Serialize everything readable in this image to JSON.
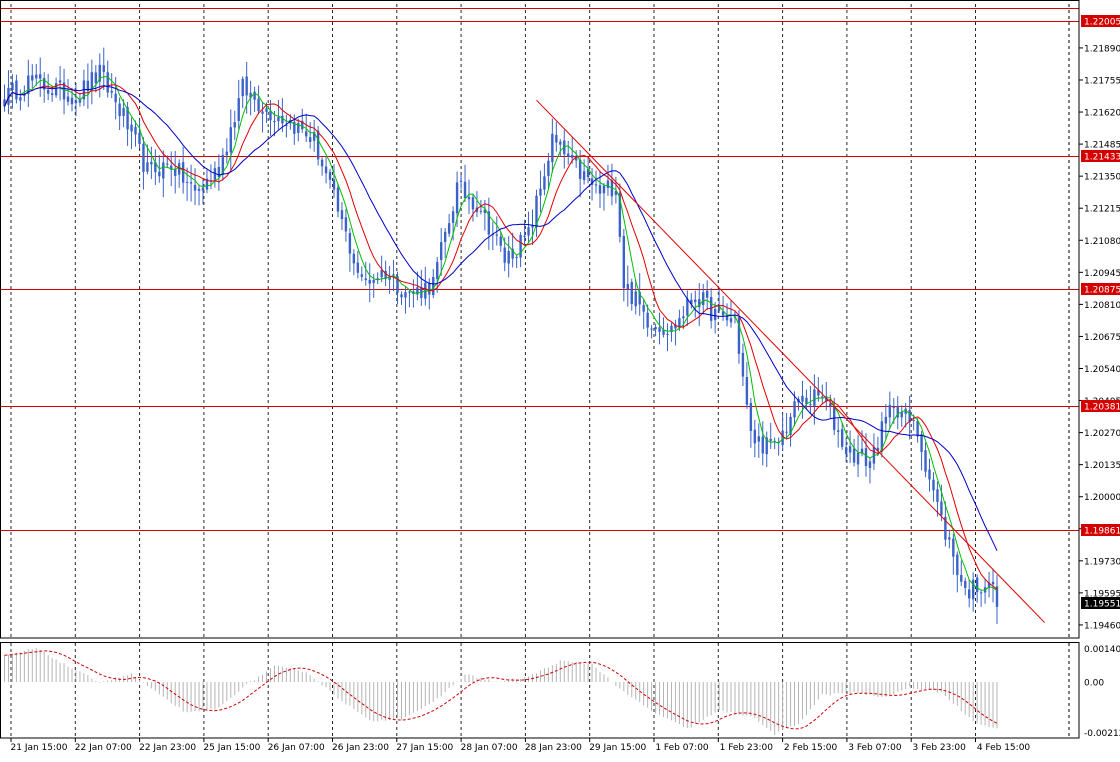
{
  "chart_data": [
    {
      "type": "candlestick",
      "panel": "main",
      "ylim": [
        1.19405,
        1.22075
      ],
      "y_ticks": [
        "1.21890",
        "1.21755",
        "1.21620",
        "1.21485",
        "1.21350",
        "1.21215",
        "1.21080",
        "1.20945",
        "1.20810",
        "1.20675",
        "1.20540",
        "1.20405",
        "1.20270",
        "1.20135",
        "1.20000",
        "1.19865",
        "1.19730",
        "1.19595",
        "1.19460"
      ],
      "x_ticks": [
        "21 Jan 15:00",
        "22 Jan 07:00",
        "22 Jan 23:00",
        "25 Jan 15:00",
        "26 Jan 07:00",
        "26 Jan 23:00",
        "27 Jan 15:00",
        "28 Jan 07:00",
        "28 Jan 23:00",
        "29 Jan 15:00",
        "1 Feb 07:00",
        "1 Feb 23:00",
        "2 Feb 15:00",
        "3 Feb 07:00",
        "3 Feb 23:00",
        "4 Feb 15:00"
      ],
      "horizontal_levels": [
        {
          "label": "1.22005",
          "value": 1.22005
        },
        {
          "label": "1.21433",
          "value": 1.21433
        },
        {
          "label": "1.20875",
          "value": 1.20875
        },
        {
          "label": "1.20381",
          "value": 1.20381
        },
        {
          "label": "1.19861",
          "value": 1.19861
        }
      ],
      "current_price": {
        "label": "1.19551",
        "value": 1.19551
      },
      "close_anchors": [
        [
          0,
          1.2168
        ],
        [
          6,
          1.2175
        ],
        [
          12,
          1.2172
        ],
        [
          18,
          1.2169
        ],
        [
          24,
          1.2178
        ],
        [
          30,
          1.216
        ],
        [
          36,
          1.2137
        ],
        [
          42,
          1.214
        ],
        [
          48,
          1.2128
        ],
        [
          54,
          1.2138
        ],
        [
          60,
          1.2172
        ],
        [
          66,
          1.2163
        ],
        [
          72,
          1.2158
        ],
        [
          78,
          1.215
        ],
        [
          84,
          1.212
        ],
        [
          90,
          1.209
        ],
        [
          96,
          1.2095
        ],
        [
          102,
          1.2085
        ],
        [
          108,
          1.209
        ],
        [
          114,
          1.213
        ],
        [
          120,
          1.2122
        ],
        [
          126,
          1.21
        ],
        [
          132,
          1.211
        ],
        [
          138,
          1.215
        ],
        [
          144,
          1.2138
        ],
        [
          150,
          1.2128
        ],
        [
          154,
          1.2132
        ],
        [
          156,
          1.209
        ],
        [
          162,
          1.2075
        ],
        [
          168,
          1.207
        ],
        [
          174,
          1.2085
        ],
        [
          180,
          1.2075
        ],
        [
          184,
          1.2075
        ],
        [
          188,
          1.2025
        ],
        [
          194,
          1.202
        ],
        [
          200,
          1.204
        ],
        [
          206,
          1.2042
        ],
        [
          212,
          1.202
        ],
        [
          218,
          1.2015
        ],
        [
          224,
          1.204
        ],
        [
          230,
          1.2027
        ],
        [
          236,
          1.199
        ],
        [
          242,
          1.196
        ],
        [
          248,
          1.1965
        ],
        [
          250,
          1.1955
        ]
      ],
      "moving_averages": [
        {
          "color": "#00c000",
          "period": 5
        },
        {
          "color": "#e00000",
          "period": 10
        },
        {
          "color": "#0000c8",
          "period": 20
        }
      ],
      "trendline": {
        "color": "#e00000",
        "from": [
          134,
          1.2167
        ],
        "to": [
          262,
          1.1947
        ]
      }
    },
    {
      "type": "histogram",
      "panel": "indicator",
      "ylim": [
        -0.00215,
        0.0015
      ],
      "y_ticks": [
        "0.001408",
        "0.00",
        "-0.002124"
      ],
      "series": [
        {
          "type": "bar",
          "color": "#b4b4b4",
          "signal_color": "#d00000"
        }
      ],
      "value_anchors": [
        [
          0,
          0.001
        ],
        [
          8,
          0.0013
        ],
        [
          16,
          0.0006
        ],
        [
          24,
          0.0
        ],
        [
          32,
          0.0003
        ],
        [
          40,
          -0.0006
        ],
        [
          46,
          -0.0012
        ],
        [
          54,
          -0.001
        ],
        [
          60,
          -0.0002
        ],
        [
          68,
          0.0006
        ],
        [
          76,
          0.0004
        ],
        [
          84,
          -0.0006
        ],
        [
          92,
          -0.0015
        ],
        [
          100,
          -0.0014
        ],
        [
          108,
          -0.0008
        ],
        [
          116,
          0.0003
        ],
        [
          124,
          0.0
        ],
        [
          132,
          0.0002
        ],
        [
          140,
          0.0008
        ],
        [
          148,
          0.0007
        ],
        [
          156,
          -0.0004
        ],
        [
          164,
          -0.0012
        ],
        [
          172,
          -0.0018
        ],
        [
          180,
          -0.0011
        ],
        [
          188,
          -0.0013
        ],
        [
          194,
          -0.002
        ],
        [
          200,
          -0.0016
        ],
        [
          206,
          -0.0005
        ],
        [
          214,
          -0.0004
        ],
        [
          222,
          -0.0006
        ],
        [
          228,
          -0.0002
        ],
        [
          236,
          -0.0004
        ],
        [
          244,
          -0.0015
        ],
        [
          250,
          -0.0018
        ]
      ]
    }
  ]
}
